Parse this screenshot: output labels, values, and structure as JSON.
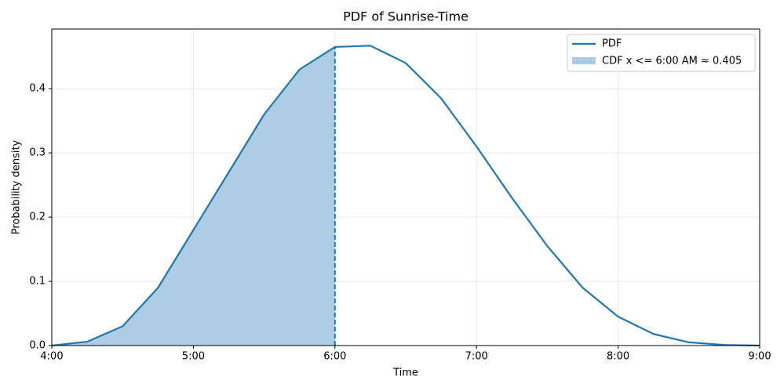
{
  "chart_data": {
    "type": "line",
    "title": "PDF of Sunrise-Time",
    "x_label": "Time",
    "y_label": "Probability density",
    "x": [
      4,
      4.25,
      4.5,
      4.75,
      5,
      5.25,
      5.5,
      5.75,
      6,
      6.25,
      6.5,
      6.75,
      7,
      7.25,
      7.5,
      7.75,
      8,
      8.25,
      8.5,
      8.75,
      9
    ],
    "series": [
      {
        "name": "PDF",
        "color": "#1f77b4",
        "values": [
          0,
          0.006,
          0.03,
          0.09,
          0.18,
          0.27,
          0.36,
          0.43,
          0.465,
          0.467,
          0.44,
          0.385,
          0.31,
          0.23,
          0.155,
          0.09,
          0.045,
          0.018,
          0.005,
          0.001,
          0
        ]
      }
    ],
    "shade": {
      "label": "CDF x <= 6:00 AM ≈ 0.405",
      "to": 6,
      "color": "#aecde4"
    },
    "xlim": [
      4,
      9
    ],
    "xticks": [
      {
        "value": 4,
        "label": "4:00"
      },
      {
        "value": 5,
        "label": "5:00"
      },
      {
        "value": 6,
        "label": "6:00"
      },
      {
        "value": 7,
        "label": "7:00"
      },
      {
        "value": 8,
        "label": "8:00"
      },
      {
        "value": 9,
        "label": "9:00"
      }
    ],
    "ylim": [
      0,
      0.493
    ],
    "yticks": [
      {
        "value": 0,
        "label": "0.0"
      },
      {
        "value": 0.1,
        "label": "0.1"
      },
      {
        "value": 0.2,
        "label": "0.2"
      },
      {
        "value": 0.3,
        "label": "0.3"
      },
      {
        "value": 0.4,
        "label": "0.4"
      }
    ],
    "grid": true,
    "legend": "upper right"
  }
}
